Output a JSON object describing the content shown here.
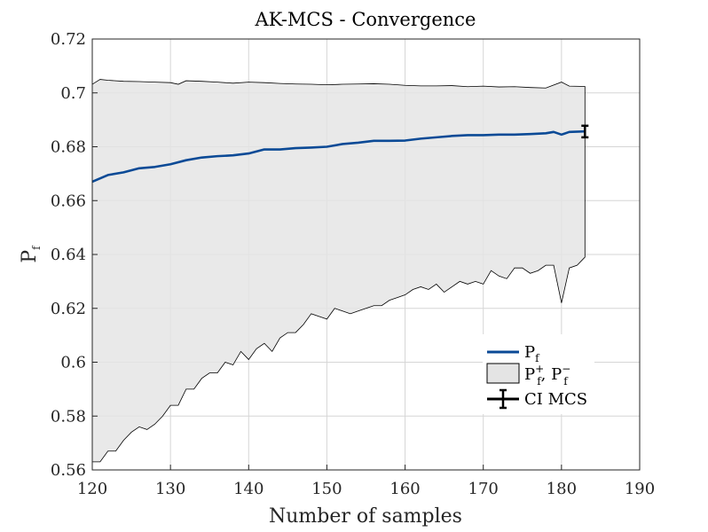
{
  "chart_data": {
    "type": "line",
    "title": "AK-MCS - Convergence",
    "xlabel": "Number of samples",
    "ylabel_main": "P",
    "ylabel_sub": "f",
    "xlim": [
      120,
      190
    ],
    "ylim": [
      0.56,
      0.72
    ],
    "xticks": [
      120,
      130,
      140,
      150,
      160,
      170,
      180,
      190
    ],
    "yticks": [
      0.56,
      0.58,
      0.6,
      0.62,
      0.64,
      0.66,
      0.68,
      0.7,
      0.72
    ],
    "ytick_labels": [
      "0.56",
      "0.58",
      "0.6",
      "0.62",
      "0.64",
      "0.66",
      "0.68",
      "0.7",
      "0.72"
    ],
    "grid": true,
    "legend_position": "lower-right",
    "colors": {
      "pf_line": "#0b4a96",
      "band_fill": "#e4e4e4",
      "band_edge": "#000000",
      "ci": "#000000"
    },
    "series": [
      {
        "name": "Pf",
        "x": [
          120,
          122,
          124,
          126,
          128,
          130,
          132,
          134,
          136,
          138,
          140,
          142,
          144,
          146,
          148,
          150,
          152,
          154,
          156,
          158,
          160,
          162,
          164,
          166,
          168,
          170,
          172,
          174,
          176,
          178,
          179,
          180,
          181,
          183
        ],
        "values": [
          0.667,
          0.6695,
          0.6705,
          0.672,
          0.6725,
          0.6735,
          0.675,
          0.676,
          0.6765,
          0.6768,
          0.6775,
          0.679,
          0.679,
          0.6795,
          0.6797,
          0.68,
          0.681,
          0.6815,
          0.6822,
          0.6822,
          0.6823,
          0.683,
          0.6835,
          0.684,
          0.6843,
          0.6843,
          0.6845,
          0.6845,
          0.6847,
          0.685,
          0.6855,
          0.6845,
          0.6855,
          0.6857
        ]
      },
      {
        "name": "Pf+",
        "x": [
          120,
          121,
          122,
          124,
          126,
          128,
          130,
          131,
          132,
          134,
          136,
          138,
          140,
          142,
          144,
          146,
          148,
          150,
          152,
          154,
          156,
          158,
          160,
          162,
          164,
          166,
          168,
          170,
          172,
          174,
          176,
          178,
          180,
          181,
          183
        ],
        "values": [
          0.7032,
          0.705,
          0.7047,
          0.7043,
          0.7042,
          0.704,
          0.7038,
          0.7032,
          0.7045,
          0.7043,
          0.704,
          0.7036,
          0.704,
          0.7038,
          0.7035,
          0.7033,
          0.7032,
          0.703,
          0.7032,
          0.7033,
          0.7034,
          0.7032,
          0.7028,
          0.7026,
          0.7026,
          0.7027,
          0.7023,
          0.7025,
          0.7022,
          0.7023,
          0.702,
          0.7018,
          0.704,
          0.7025,
          0.7024
        ]
      },
      {
        "name": "Pf-",
        "x": [
          120,
          121,
          122,
          123,
          124,
          125,
          126,
          127,
          128,
          129,
          130,
          131,
          132,
          133,
          134,
          135,
          136,
          137,
          138,
          139,
          140,
          141,
          142,
          143,
          144,
          145,
          146,
          147,
          148,
          149,
          150,
          151,
          152,
          153,
          154,
          155,
          156,
          157,
          158,
          159,
          160,
          161,
          162,
          163,
          164,
          165,
          166,
          167,
          168,
          169,
          170,
          171,
          172,
          173,
          174,
          175,
          176,
          177,
          178,
          179,
          180,
          181,
          182,
          183
        ],
        "values": [
          0.563,
          0.563,
          0.567,
          0.567,
          0.571,
          0.574,
          0.576,
          0.575,
          0.577,
          0.58,
          0.584,
          0.584,
          0.59,
          0.59,
          0.594,
          0.596,
          0.596,
          0.6,
          0.599,
          0.604,
          0.601,
          0.605,
          0.607,
          0.604,
          0.609,
          0.611,
          0.611,
          0.614,
          0.618,
          0.617,
          0.616,
          0.62,
          0.619,
          0.618,
          0.619,
          0.62,
          0.621,
          0.621,
          0.623,
          0.624,
          0.625,
          0.627,
          0.628,
          0.627,
          0.629,
          0.626,
          0.628,
          0.63,
          0.629,
          0.63,
          0.629,
          0.634,
          0.632,
          0.631,
          0.635,
          0.635,
          0.633,
          0.634,
          0.636,
          0.636,
          0.622,
          0.635,
          0.636,
          0.639
        ]
      }
    ],
    "ci": {
      "name": "CI MCS",
      "x": 183,
      "center": 0.6857,
      "low": 0.6835,
      "high": 0.6878
    },
    "legend": [
      {
        "label_main": "P",
        "label_sub": "f"
      },
      {
        "label_a_main": "P",
        "label_a_sub": "f",
        "label_a_sup": "+",
        "separator": ", ",
        "label_b_main": "P",
        "label_b_sub": "f",
        "label_b_sup": "−"
      },
      {
        "label": "CI MCS"
      }
    ]
  }
}
